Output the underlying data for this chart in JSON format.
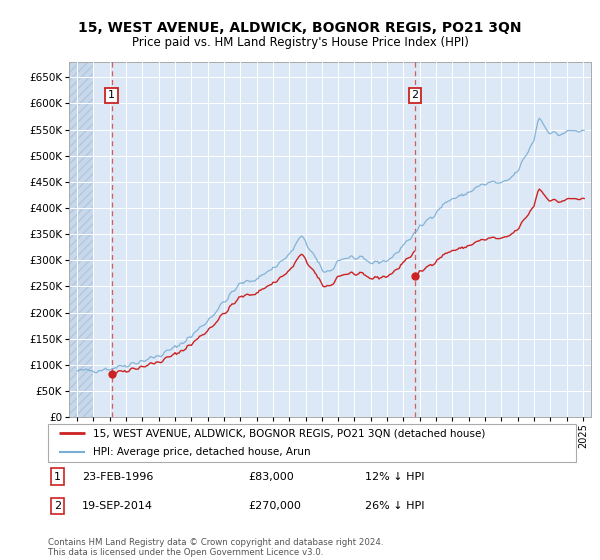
{
  "title": "15, WEST AVENUE, ALDWICK, BOGNOR REGIS, PO21 3QN",
  "subtitle": "Price paid vs. HM Land Registry's House Price Index (HPI)",
  "hpi_color": "#7aadd4",
  "price_color": "#cc2222",
  "background_color": "#dce8f5",
  "legend_line1": "15, WEST AVENUE, ALDWICK, BOGNOR REGIS, PO21 3QN (detached house)",
  "legend_line2": "HPI: Average price, detached house, Arun",
  "sale1_date": 1996.12,
  "sale1_price": 83000,
  "sale2_date": 2014.72,
  "sale2_price": 270000,
  "footer": "Contains HM Land Registry data © Crown copyright and database right 2024.\nThis data is licensed under the Open Government Licence v3.0.",
  "ylim": [
    0,
    680000
  ],
  "xlim": [
    1993.5,
    2025.5
  ]
}
